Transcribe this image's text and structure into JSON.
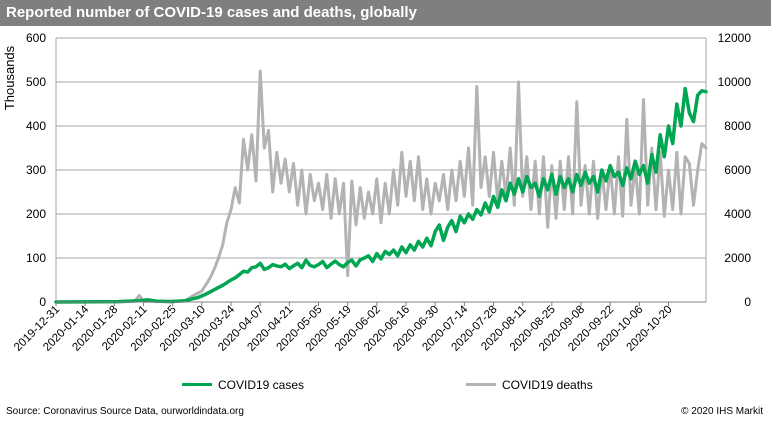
{
  "header": {
    "title": "Reported number of COVID-19 cases and deaths, globally"
  },
  "footer": {
    "source": "Source: Coronavirus Source Data, ourworldindata.org",
    "copyright": "© 2020 IHS Markit"
  },
  "colors": {
    "cases": "#00a651",
    "deaths": "#b3b3b3",
    "title_bg": "#7f7f7f",
    "grid": "#a6a6a6"
  },
  "chart_data": {
    "type": "line",
    "title": "Reported number of COVID-19 cases and deaths, globally",
    "ylabel": "Thousands",
    "ylim": [
      0,
      600
    ],
    "y_ticks": [
      "0",
      "100",
      "200",
      "300",
      "400",
      "500",
      "600"
    ],
    "y2lim": [
      0,
      12000
    ],
    "y2_ticks": [
      "0",
      "2000",
      "4000",
      "6000",
      "8000",
      "10000",
      "12000"
    ],
    "x_start": "2019-12-31",
    "x_end": "2020-11-08",
    "x_tick_labels": [
      "2019-12-31",
      "2020-01-14",
      "2020-01-28",
      "2020-02-11",
      "2020-02-25",
      "2020-03-10",
      "2020-03-24",
      "2020-04-07",
      "2020-04-21",
      "2020-05-05",
      "2020-05-19",
      "2020-06-02",
      "2020-06-16",
      "2020-06-30",
      "2020-07-14",
      "2020-07-28",
      "2020-08-11",
      "2020-08-25",
      "2020-09-08",
      "2020-09-22",
      "2020-10-06",
      "2020-10-20"
    ],
    "legend_position": "bottom",
    "series": [
      {
        "name": "COVID19 cases",
        "axis": "left",
        "unit": "thousands",
        "x": [
          0,
          30,
          40,
          44,
          48,
          55,
          62,
          68,
          72,
          76,
          80,
          84,
          86,
          88,
          90,
          92,
          94,
          96,
          98,
          100,
          102,
          104,
          106,
          108,
          110,
          112,
          114,
          116,
          118,
          120,
          122,
          124,
          126,
          128,
          130,
          132,
          134,
          136,
          138,
          140,
          142,
          144,
          146,
          148,
          150,
          152,
          154,
          156,
          158,
          160,
          162,
          164,
          166,
          168,
          170,
          172,
          174,
          176,
          178,
          180,
          182,
          184,
          186,
          188,
          190,
          192,
          194,
          196,
          198,
          200,
          202,
          204,
          206,
          208,
          210,
          212,
          214,
          216,
          218,
          220,
          222,
          224,
          226,
          228,
          230,
          232,
          234,
          236,
          238,
          240,
          242,
          244,
          246,
          248,
          250,
          252,
          254,
          256,
          258,
          260,
          262,
          264,
          266,
          268,
          270,
          272,
          274,
          276,
          278,
          280,
          282,
          284,
          286,
          288,
          290,
          292,
          294,
          296,
          298,
          300,
          302,
          304,
          306,
          308,
          310,
          312
        ],
        "values": [
          0,
          1,
          3,
          5,
          2,
          1,
          3,
          10,
          18,
          28,
          38,
          50,
          55,
          62,
          70,
          68,
          78,
          80,
          88,
          74,
          78,
          85,
          82,
          80,
          86,
          76,
          82,
          88,
          78,
          95,
          83,
          80,
          85,
          92,
          78,
          86,
          93,
          85,
          80,
          90,
          95,
          82,
          96,
          100,
          105,
          92,
          110,
          98,
          115,
          108,
          118,
          105,
          125,
          112,
          130,
          118,
          138,
          125,
          145,
          128,
          160,
          175,
          140,
          170,
          185,
          160,
          195,
          180,
          200,
          188,
          210,
          198,
          225,
          205,
          240,
          215,
          255,
          230,
          270,
          245,
          280,
          250,
          285,
          260,
          270,
          240,
          280,
          255,
          290,
          245,
          285,
          260,
          280,
          250,
          290,
          265,
          295,
          270,
          285,
          250,
          300,
          275,
          310,
          285,
          295,
          265,
          305,
          280,
          320,
          290,
          310,
          270,
          335,
          295,
          380,
          330,
          400,
          360,
          450,
          400,
          485,
          430,
          410,
          470,
          480,
          478
        ]
      },
      {
        "name": "COVID19 deaths",
        "axis": "right",
        "unit": "count",
        "x": [
          0,
          30,
          38,
          40,
          42,
          44,
          48,
          55,
          62,
          66,
          70,
          72,
          74,
          76,
          78,
          80,
          82,
          84,
          86,
          88,
          90,
          92,
          94,
          96,
          98,
          100,
          102,
          104,
          106,
          108,
          110,
          112,
          114,
          116,
          118,
          120,
          122,
          124,
          126,
          128,
          130,
          132,
          134,
          136,
          138,
          140,
          142,
          144,
          146,
          148,
          150,
          152,
          154,
          156,
          158,
          160,
          162,
          164,
          166,
          168,
          170,
          172,
          174,
          176,
          178,
          180,
          182,
          184,
          186,
          188,
          190,
          192,
          194,
          196,
          198,
          200,
          202,
          204,
          206,
          208,
          210,
          212,
          214,
          216,
          218,
          220,
          222,
          224,
          226,
          228,
          230,
          232,
          234,
          236,
          238,
          240,
          242,
          244,
          246,
          248,
          250,
          252,
          254,
          256,
          258,
          260,
          262,
          264,
          266,
          268,
          270,
          272,
          274,
          276,
          278,
          280,
          282,
          284,
          286,
          288,
          290,
          292,
          294,
          296,
          298,
          300,
          302,
          304,
          306,
          308,
          310,
          312
        ],
        "values": [
          0,
          20,
          60,
          300,
          20,
          40,
          20,
          30,
          60,
          300,
          500,
          800,
          1100,
          1500,
          2000,
          2600,
          3600,
          4200,
          5200,
          4500,
          7400,
          6000,
          7600,
          5500,
          10500,
          7000,
          7800,
          5000,
          6800,
          5400,
          6500,
          5000,
          6300,
          4400,
          6000,
          4000,
          5800,
          4600,
          5400,
          4200,
          5800,
          3800,
          5600,
          4000,
          5400,
          1200,
          5500,
          3500,
          5200,
          3800,
          5000,
          4000,
          5600,
          3600,
          5400,
          4000,
          6000,
          4400,
          6800,
          4800,
          6400,
          4600,
          6600,
          4200,
          5600,
          4000,
          5400,
          4600,
          5800,
          4200,
          6000,
          4600,
          6400,
          4800,
          7000,
          4400,
          9800,
          5200,
          6600,
          4800,
          6800,
          4600,
          6400,
          4800,
          7000,
          4400,
          10000,
          4800,
          6600,
          4200,
          6400,
          4000,
          6600,
          3400,
          6200,
          3800,
          6400,
          4200,
          6600,
          4000,
          9100,
          4400,
          6200,
          4000,
          6400,
          3800,
          6000,
          4200,
          6200,
          4000,
          6600,
          3900,
          8300,
          4400,
          6200,
          4000,
          9200,
          4400,
          7000,
          4200,
          6800,
          3900,
          6000,
          4200,
          6800,
          4000,
          6600,
          6300,
          4400,
          6000,
          7200,
          7000
        ]
      }
    ]
  }
}
